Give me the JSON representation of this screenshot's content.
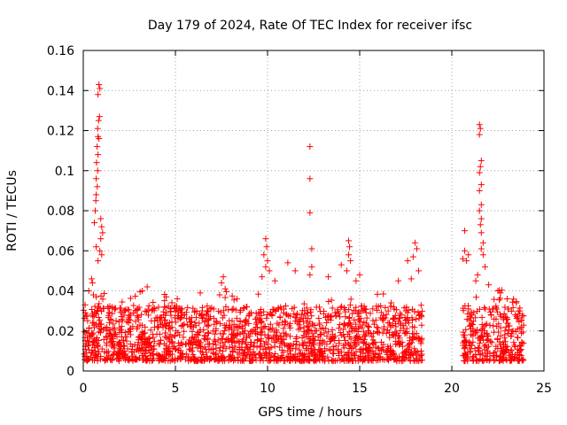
{
  "chart_data": {
    "type": "scatter",
    "title": "Day 179 of 2024, Rate Of TEC Index for receiver ifsc",
    "xlabel": "GPS time / hours",
    "ylabel": "ROTI / TECUs",
    "xlim": [
      0,
      25
    ],
    "ylim": [
      0,
      0.16
    ],
    "xticks": [
      0,
      5,
      10,
      15,
      20,
      25
    ],
    "xtick_labels": [
      "0",
      "5",
      "10",
      "15",
      "20",
      "25"
    ],
    "yticks": [
      0,
      0.02,
      0.04,
      0.06,
      0.08,
      0.1,
      0.12,
      0.14,
      0.16
    ],
    "ytick_labels": [
      "0",
      "0.02",
      "0.04",
      "0.06",
      "0.08",
      "0.1",
      "0.12",
      "0.14",
      "0.16"
    ],
    "grid": true,
    "marker": "+",
    "color": "#ff0000",
    "data_gaps_hours": [
      [
        18.4,
        20.6
      ]
    ],
    "coverage_hours": [
      [
        0,
        18.4
      ],
      [
        20.6,
        23.9
      ]
    ],
    "baseline_roti_range": [
      0.005,
      0.03
    ],
    "series": [
      {
        "name": "ROTI",
        "points": [
          [
            0.85,
            0.143
          ],
          [
            0.9,
            0.141
          ],
          [
            0.8,
            0.138
          ],
          [
            0.88,
            0.127
          ],
          [
            0.83,
            0.125
          ],
          [
            0.78,
            0.121
          ],
          [
            0.8,
            0.117
          ],
          [
            0.85,
            0.116
          ],
          [
            0.75,
            0.112
          ],
          [
            0.8,
            0.108
          ],
          [
            0.72,
            0.104
          ],
          [
            0.78,
            0.1
          ],
          [
            0.7,
            0.096
          ],
          [
            0.76,
            0.092
          ],
          [
            0.7,
            0.088
          ],
          [
            0.68,
            0.085
          ],
          [
            0.65,
            0.08
          ],
          [
            0.95,
            0.076
          ],
          [
            0.6,
            0.074
          ],
          [
            1.0,
            0.072
          ],
          [
            1.05,
            0.069
          ],
          [
            0.95,
            0.066
          ],
          [
            0.7,
            0.062
          ],
          [
            0.9,
            0.06
          ],
          [
            1.0,
            0.058
          ],
          [
            0.8,
            0.055
          ],
          [
            0.45,
            0.046
          ],
          [
            0.5,
            0.044
          ],
          [
            0.3,
            0.04
          ],
          [
            0.55,
            0.038
          ],
          [
            3.2,
            0.04
          ],
          [
            4.5,
            0.037
          ],
          [
            5.1,
            0.036
          ],
          [
            7.6,
            0.047
          ],
          [
            7.5,
            0.044
          ],
          [
            7.7,
            0.041
          ],
          [
            7.4,
            0.038
          ],
          [
            9.9,
            0.066
          ],
          [
            9.95,
            0.062
          ],
          [
            9.8,
            0.058
          ],
          [
            10.0,
            0.055
          ],
          [
            9.9,
            0.052
          ],
          [
            10.1,
            0.05
          ],
          [
            9.7,
            0.047
          ],
          [
            10.4,
            0.045
          ],
          [
            11.1,
            0.054
          ],
          [
            11.5,
            0.05
          ],
          [
            12.3,
            0.112
          ],
          [
            12.3,
            0.096
          ],
          [
            12.3,
            0.079
          ],
          [
            12.4,
            0.061
          ],
          [
            12.4,
            0.052
          ],
          [
            12.3,
            0.048
          ],
          [
            13.3,
            0.047
          ],
          [
            14.0,
            0.053
          ],
          [
            14.4,
            0.065
          ],
          [
            14.45,
            0.062
          ],
          [
            14.4,
            0.058
          ],
          [
            14.5,
            0.055
          ],
          [
            14.3,
            0.05
          ],
          [
            15.0,
            0.048
          ],
          [
            14.8,
            0.045
          ],
          [
            17.1,
            0.045
          ],
          [
            18.0,
            0.064
          ],
          [
            18.1,
            0.061
          ],
          [
            17.9,
            0.057
          ],
          [
            17.6,
            0.055
          ],
          [
            18.2,
            0.05
          ],
          [
            17.8,
            0.046
          ],
          [
            20.7,
            0.07
          ],
          [
            20.7,
            0.06
          ],
          [
            20.9,
            0.058
          ],
          [
            20.8,
            0.055
          ],
          [
            20.6,
            0.056
          ],
          [
            21.5,
            0.123
          ],
          [
            21.55,
            0.121
          ],
          [
            21.5,
            0.118
          ],
          [
            21.6,
            0.105
          ],
          [
            21.55,
            0.102
          ],
          [
            21.5,
            0.099
          ],
          [
            21.6,
            0.093
          ],
          [
            21.5,
            0.09
          ],
          [
            21.6,
            0.083
          ],
          [
            21.5,
            0.08
          ],
          [
            21.6,
            0.076
          ],
          [
            21.55,
            0.073
          ],
          [
            21.6,
            0.069
          ],
          [
            21.7,
            0.064
          ],
          [
            21.6,
            0.061
          ],
          [
            21.7,
            0.058
          ],
          [
            21.8,
            0.052
          ],
          [
            21.4,
            0.048
          ],
          [
            21.3,
            0.045
          ],
          [
            22.0,
            0.043
          ],
          [
            22.5,
            0.04
          ],
          [
            23.0,
            0.036
          ],
          [
            23.5,
            0.034
          ],
          [
            23.7,
            0.03
          ]
        ]
      }
    ]
  }
}
